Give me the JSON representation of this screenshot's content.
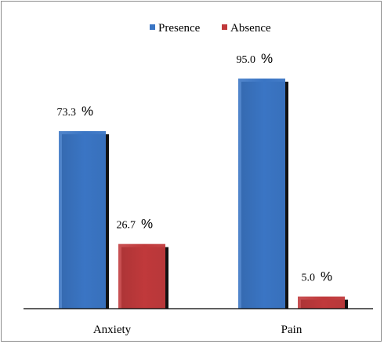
{
  "chart_data": {
    "type": "bar",
    "categories": [
      "Anxiety",
      "Pain"
    ],
    "series": [
      {
        "name": "Presence",
        "values": [
          73.3,
          95.0
        ],
        "labels": [
          "73.3",
          "95.0"
        ],
        "color": "#3a75c4"
      },
      {
        "name": "Absence",
        "values": [
          26.7,
          5.0
        ],
        "labels": [
          "26.7",
          "5.0"
        ],
        "color": "#c0393b"
      }
    ],
    "value_unit": "%",
    "legend_position": "top",
    "grid": false,
    "ylim": [
      0,
      100
    ]
  }
}
